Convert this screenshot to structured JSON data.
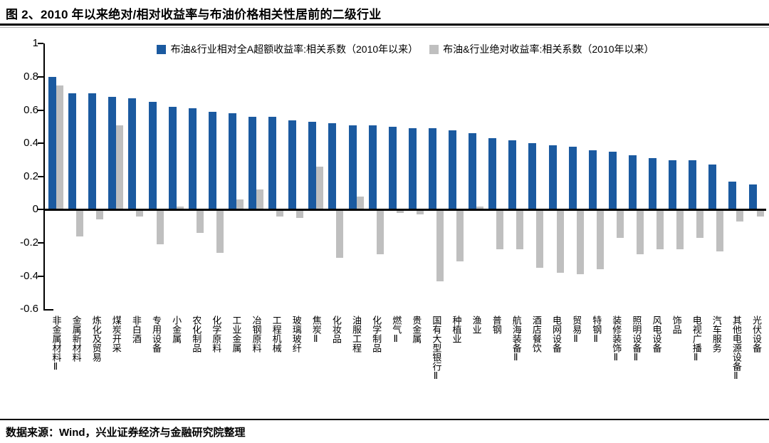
{
  "title": "图 2、2010 年以来绝对/相对收益率与布油价格相关性居前的二级行业",
  "footer": "数据来源：Wind，兴业证券经济与金融研究院整理",
  "colors": {
    "relative_series": "#1B5AA0",
    "absolute_series": "#BFBFBF",
    "axis": "#000000"
  },
  "chart_data": {
    "type": "bar",
    "title": "图 2、2010 年以来绝对/相对收益率与布油价格相关性居前的二级行业",
    "xlabel": "",
    "ylabel": "",
    "ylim": [
      -0.6,
      1.0
    ],
    "yticks": [
      1,
      0.8,
      0.6,
      0.4,
      0.2,
      0,
      -0.2,
      -0.4,
      -0.6
    ],
    "grid": false,
    "legend_position": "top",
    "categories": [
      "非金属材料Ⅱ",
      "金属新材料",
      "炼化及贸易",
      "煤炭开采",
      "非白酒",
      "专用设备",
      "小金属",
      "农化制品",
      "化学原料",
      "工业金属",
      "冶钢原料",
      "工程机械",
      "玻璃玻纤",
      "焦炭Ⅱ",
      "化妆品",
      "油服工程",
      "化学制品",
      "燃气Ⅱ",
      "贵金属",
      "国有大型银行Ⅱ",
      "种植业",
      "渔业",
      "普钢",
      "航海装备Ⅱ",
      "酒店餐饮",
      "电网设备",
      "贸易Ⅱ",
      "特钢Ⅱ",
      "装修装饰Ⅱ",
      "照明设备Ⅱ",
      "风电设备",
      "饰品",
      "电视广播Ⅱ",
      "汽车服务",
      "其他电源设备Ⅱ",
      "光伏设备"
    ],
    "series": [
      {
        "name": "布油&行业相对全A超额收益率:相关系数（2010年以来）",
        "color": "#1B5AA0",
        "values": [
          0.8,
          0.7,
          0.7,
          0.68,
          0.67,
          0.65,
          0.62,
          0.61,
          0.59,
          0.58,
          0.56,
          0.56,
          0.54,
          0.53,
          0.52,
          0.51,
          0.51,
          0.5,
          0.49,
          0.49,
          0.48,
          0.46,
          0.43,
          0.42,
          0.4,
          0.39,
          0.38,
          0.36,
          0.35,
          0.33,
          0.31,
          0.3,
          0.3,
          0.27,
          0.17,
          0.15
        ]
      },
      {
        "name": "布油&行业绝对收益率:相关系数（2010年以来）",
        "color": "#BFBFBF",
        "values": [
          0.75,
          -0.16,
          -0.06,
          0.51,
          -0.04,
          -0.21,
          0.02,
          -0.14,
          -0.26,
          0.06,
          0.12,
          -0.04,
          -0.05,
          0.26,
          -0.29,
          0.08,
          -0.27,
          -0.02,
          -0.03,
          -0.43,
          -0.31,
          0.02,
          -0.24,
          -0.24,
          -0.35,
          -0.38,
          -0.39,
          -0.36,
          -0.17,
          -0.27,
          -0.24,
          -0.24,
          -0.17,
          -0.25,
          -0.07,
          -0.04
        ]
      }
    ]
  }
}
